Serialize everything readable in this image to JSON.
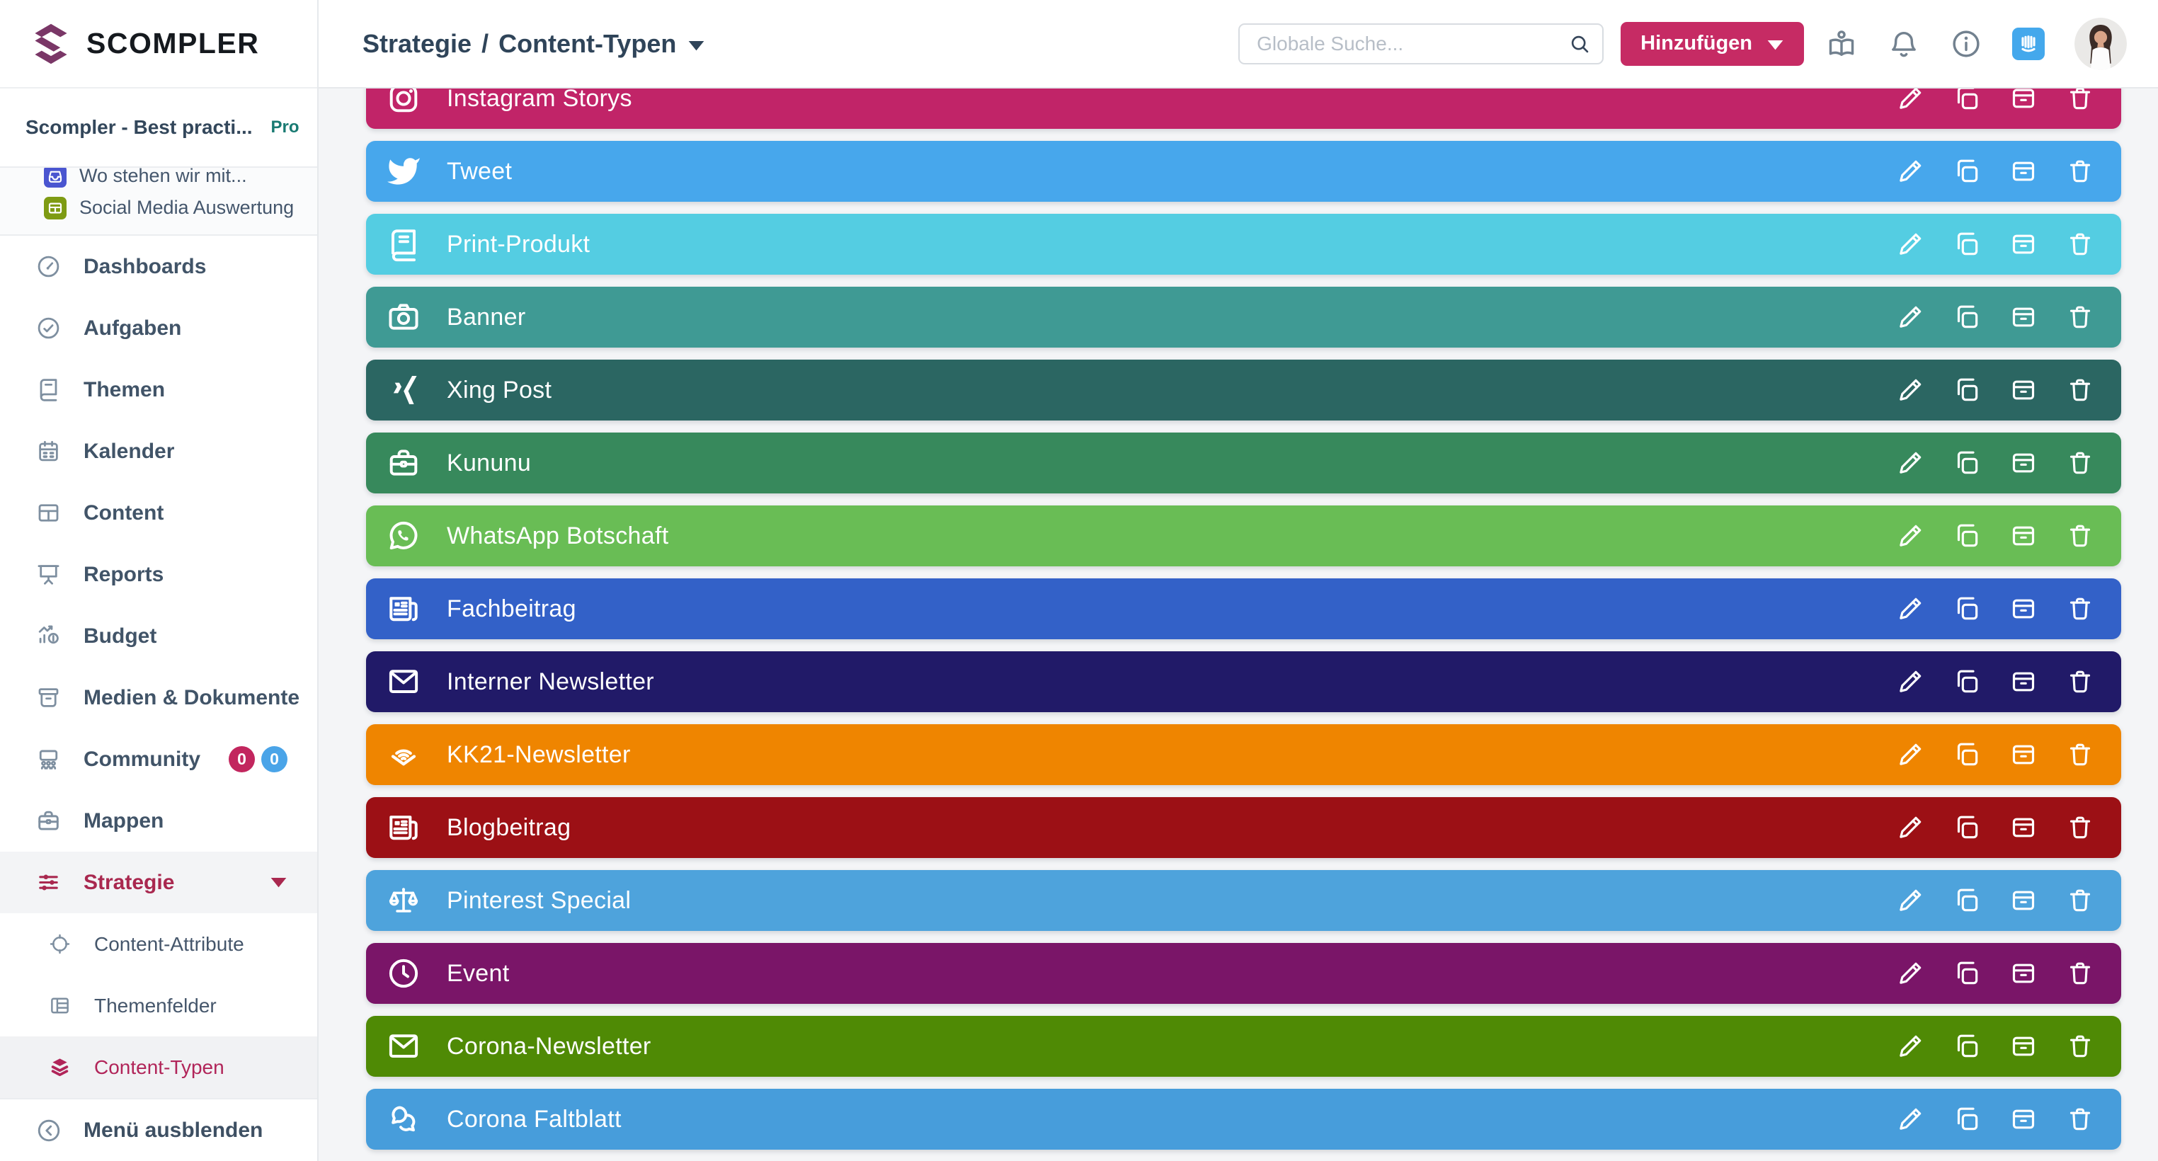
{
  "brand": {
    "name": "SCOMPLER",
    "logo_color": "#7A3767"
  },
  "workspace": {
    "name": "Scompler - Best practi...",
    "plan_badge": "Pro"
  },
  "header": {
    "breadcrumb_section": "Strategie",
    "breadcrumb_separator": "/",
    "breadcrumb_page": "Content-Typen",
    "search_placeholder": "Globale Suche...",
    "add_button_label": "Hinzufügen"
  },
  "sidebar": {
    "pinned": [
      {
        "label": "Wo stehen wir mit...",
        "icon": "save-tray",
        "color": "#4A55D0"
      },
      {
        "label": "Social Media Auswertung",
        "icon": "mini-table",
        "color": "#7E9B13"
      }
    ],
    "items": [
      {
        "label": "Dashboards",
        "icon": "gauge"
      },
      {
        "label": "Aufgaben",
        "icon": "check-circle"
      },
      {
        "label": "Themen",
        "icon": "book"
      },
      {
        "label": "Kalender",
        "icon": "calendar"
      },
      {
        "label": "Content",
        "icon": "grid"
      },
      {
        "label": "Reports",
        "icon": "presentation"
      },
      {
        "label": "Budget",
        "icon": "chart-money"
      },
      {
        "label": "Medien & Dokumente",
        "icon": "archive"
      },
      {
        "label": "Community",
        "icon": "people",
        "badges": [
          {
            "value": "0",
            "color": "#C2265E"
          },
          {
            "value": "0",
            "color": "#4AA4E8"
          }
        ]
      },
      {
        "label": "Mappen",
        "icon": "briefcase"
      },
      {
        "label": "Strategie",
        "icon": "sliders",
        "active": true,
        "expanded": true
      }
    ],
    "subitems": [
      {
        "label": "Content-Attribute",
        "icon": "target"
      },
      {
        "label": "Themenfelder",
        "icon": "table-rows"
      },
      {
        "label": "Content-Typen",
        "icon": "layers",
        "active": true
      }
    ],
    "footer_label": "Menü ausblenden"
  },
  "content_types": [
    {
      "label": "Instagram Storys",
      "icon": "instagram",
      "color": "#C12468"
    },
    {
      "label": "Tweet",
      "icon": "twitter",
      "color": "#47A7EC"
    },
    {
      "label": "Print-Produkt",
      "icon": "print-book",
      "color": "#54CDE2"
    },
    {
      "label": "Banner",
      "icon": "camera",
      "color": "#3F9A94"
    },
    {
      "label": "Xing Post",
      "icon": "xing",
      "color": "#2B6662"
    },
    {
      "label": "Kununu",
      "icon": "briefcase",
      "color": "#37895C"
    },
    {
      "label": "WhatsApp Botschaft",
      "icon": "whatsapp",
      "color": "#69BD55"
    },
    {
      "label": "Fachbeitrag",
      "icon": "newspaper",
      "color": "#3361C8"
    },
    {
      "label": "Interner Newsletter",
      "icon": "envelope",
      "color": "#211A68"
    },
    {
      "label": "KK21-Newsletter",
      "icon": "audible",
      "color": "#EF8500"
    },
    {
      "label": "Blogbeitrag",
      "icon": "newspaper",
      "color": "#9C1015"
    },
    {
      "label": "Pinterest Special",
      "icon": "scales",
      "color": "#4EA3DC"
    },
    {
      "label": "Event",
      "icon": "clock",
      "color": "#7A1568"
    },
    {
      "label": "Corona-Newsletter",
      "icon": "envelope",
      "color": "#4F8A05"
    },
    {
      "label": "Corona Faltblatt",
      "icon": "chat-bubbles",
      "color": "#479DDB"
    }
  ],
  "row_actions": [
    "edit",
    "duplicate",
    "archive",
    "delete"
  ]
}
